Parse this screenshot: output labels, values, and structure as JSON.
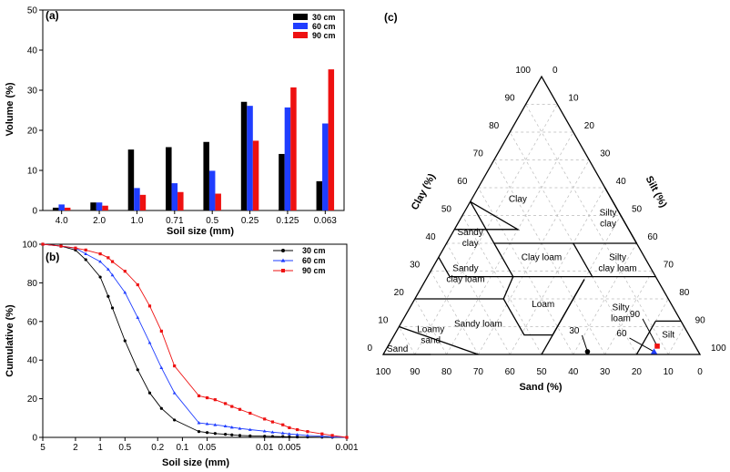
{
  "chart_data": [
    {
      "type": "bar",
      "panel": "(a)",
      "categories": [
        "4.0",
        "2.0",
        "1.0",
        "0.71",
        "0.5",
        "0.25",
        "0.125",
        "0.063"
      ],
      "series": [
        {
          "name": "30 cm",
          "color": "#000000",
          "values": [
            0.7,
            2.0,
            15.2,
            15.8,
            17.1,
            27.1,
            14.1,
            7.3
          ]
        },
        {
          "name": "60 cm",
          "color": "#1f3dff",
          "values": [
            1.5,
            2.0,
            5.6,
            6.8,
            9.9,
            26.1,
            25.7,
            21.7
          ]
        },
        {
          "name": "90 cm",
          "color": "#ee1111",
          "values": [
            0.7,
            1.2,
            3.9,
            4.6,
            4.2,
            17.4,
            30.7,
            35.2
          ]
        }
      ],
      "xlabel": "Soil size (mm)",
      "ylabel": "Volume (%)",
      "ylim": [
        0,
        50
      ],
      "yticks": [
        "0",
        "10",
        "20",
        "30",
        "40",
        "50"
      ],
      "legend_position": "top-right"
    },
    {
      "type": "line",
      "panel": "(b)",
      "x_scale": "log-reversed",
      "xlim": [
        5,
        0.001
      ],
      "xticks": [
        "5",
        "2",
        "1",
        "0.5",
        "0.2",
        "0.1",
        "0.05",
        "0.01",
        "0.005",
        "0.001"
      ],
      "x_points": [
        5,
        3,
        2,
        1.5,
        1,
        0.8,
        0.71,
        0.5,
        0.35,
        0.25,
        0.18,
        0.125,
        0.063,
        0.05,
        0.04,
        0.03,
        0.025,
        0.02,
        0.015,
        0.01,
        0.008,
        0.006,
        0.005,
        0.004,
        0.003,
        0.002,
        0.0015,
        0.001
      ],
      "series": [
        {
          "name": "30 cm",
          "color": "#000000",
          "marker": "circle",
          "values": [
            100,
            99,
            97,
            92,
            83,
            73,
            67,
            50,
            35,
            23,
            15,
            9,
            3,
            2.5,
            2,
            1.6,
            1.3,
            1,
            0.8,
            0.6,
            0.5,
            0.4,
            0.3,
            0.2,
            0.2,
            0.1,
            0.05,
            0
          ]
        },
        {
          "name": "60 cm",
          "color": "#1f3dff",
          "marker": "triangle",
          "values": [
            100,
            99,
            98,
            95,
            91,
            87,
            84,
            75,
            62,
            49,
            36,
            23,
            7.5,
            7,
            6.5,
            5.8,
            5.2,
            4.6,
            4,
            3.2,
            2.7,
            2.2,
            1.8,
            1.4,
            1,
            0.6,
            0.3,
            0
          ]
        },
        {
          "name": "90 cm",
          "color": "#ee1111",
          "marker": "square",
          "values": [
            100,
            99,
            98,
            97,
            95,
            93,
            91,
            86,
            79,
            68,
            55,
            37,
            21.5,
            20.5,
            19.5,
            17.5,
            16,
            14.5,
            12.5,
            9.5,
            8,
            6.5,
            5,
            4,
            3,
            1.8,
            1,
            0
          ]
        }
      ],
      "xlabel": "Soil size (mm)",
      "ylabel": "Cumulative (%)",
      "ylim": [
        0,
        100
      ],
      "yticks": [
        "0",
        "20",
        "40",
        "60",
        "80",
        "100"
      ],
      "legend_position": "top-right"
    },
    {
      "type": "ternary",
      "panel": "(c)",
      "axes": {
        "left": "Clay (%)",
        "right": "Silt (%)",
        "bottom": "Sand (%)"
      },
      "tick_values": [
        "0",
        "10",
        "20",
        "30",
        "40",
        "50",
        "60",
        "70",
        "80",
        "90",
        "100"
      ],
      "classes": [
        "Clay",
        "Silty clay",
        "Sandy clay",
        "Silty clay loam",
        "Clay loam",
        "Sandy clay loam",
        "Sandy loam",
        "Loam",
        "Silty loam",
        "Silt",
        "Loamy sand",
        "Sand"
      ],
      "points": [
        {
          "name": "30 cm",
          "label": "30",
          "color": "#000000",
          "marker": "circle",
          "sand": 35,
          "silt": 64,
          "clay": 1
        },
        {
          "name": "60 cm",
          "label": "60",
          "color": "#1f3dff",
          "marker": "triangle",
          "sand": 14,
          "silt": 85,
          "clay": 1
        },
        {
          "name": "90 cm",
          "label": "90",
          "color": "#ee1111",
          "marker": "square",
          "sand": 12,
          "silt": 85,
          "clay": 3
        }
      ]
    }
  ]
}
